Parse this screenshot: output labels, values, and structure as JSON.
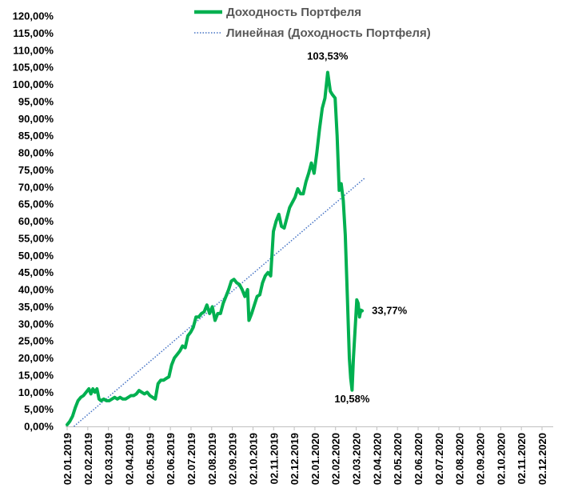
{
  "chart_data": {
    "type": "line",
    "title": "",
    "xlabel": "",
    "ylabel": "",
    "ylim": [
      0,
      120
    ],
    "y_tick_labels": [
      "0,00%",
      "5,00%",
      "10,00%",
      "15,00%",
      "20,00%",
      "25,00%",
      "30,00%",
      "35,00%",
      "40,00%",
      "45,00%",
      "50,00%",
      "55,00%",
      "60,00%",
      "65,00%",
      "70,00%",
      "75,00%",
      "80,00%",
      "85,00%",
      "90,00%",
      "95,00%",
      "100,00%",
      "105,00%",
      "110,00%",
      "115,00%",
      "120,00%"
    ],
    "x_tick_labels": [
      "02.01.2019",
      "02.02.2019",
      "02.03.2019",
      "02.04.2019",
      "02.05.2019",
      "02.06.2019",
      "02.07.2019",
      "02.08.2019",
      "02.09.2019",
      "02.10.2019",
      "02.11.2019",
      "02.12.2019",
      "02.01.2020",
      "02.02.2020",
      "02.03.2020",
      "02.04.2020",
      "02.05.2020",
      "02.06.2020",
      "02.07.2020",
      "02.08.2020",
      "02.09.2020",
      "02.10.2020",
      "02.11.2020",
      "02.12.2020"
    ],
    "grid": false,
    "legend_position": "top",
    "series": [
      {
        "name": "Доходность Портфеля",
        "color": "#00b050",
        "style": "solid",
        "points": [
          [
            "2019-01-02",
            0.5
          ],
          [
            "2019-01-06",
            1.5
          ],
          [
            "2019-01-10",
            3
          ],
          [
            "2019-01-14",
            5.5
          ],
          [
            "2019-01-18",
            7.5
          ],
          [
            "2019-01-22",
            8.5
          ],
          [
            "2019-01-26",
            9
          ],
          [
            "2019-01-30",
            10
          ],
          [
            "2019-02-03",
            11
          ],
          [
            "2019-02-06",
            9.5
          ],
          [
            "2019-02-09",
            11
          ],
          [
            "2019-02-12",
            10
          ],
          [
            "2019-02-15",
            11
          ],
          [
            "2019-02-18",
            8
          ],
          [
            "2019-02-21",
            7.5
          ],
          [
            "2019-02-25",
            8
          ],
          [
            "2019-03-01",
            7.5
          ],
          [
            "2019-03-05",
            7.5
          ],
          [
            "2019-03-09",
            8
          ],
          [
            "2019-03-13",
            8.5
          ],
          [
            "2019-03-17",
            8
          ],
          [
            "2019-03-21",
            8.5
          ],
          [
            "2019-03-25",
            8
          ],
          [
            "2019-03-29",
            8
          ],
          [
            "2019-04-02",
            8.5
          ],
          [
            "2019-04-06",
            9
          ],
          [
            "2019-04-10",
            9
          ],
          [
            "2019-04-14",
            9.5
          ],
          [
            "2019-04-18",
            10.5
          ],
          [
            "2019-04-22",
            10
          ],
          [
            "2019-04-26",
            9.5
          ],
          [
            "2019-04-30",
            10
          ],
          [
            "2019-05-04",
            9
          ],
          [
            "2019-05-08",
            8.5
          ],
          [
            "2019-05-12",
            8
          ],
          [
            "2019-05-16",
            12.5
          ],
          [
            "2019-05-20",
            13.5
          ],
          [
            "2019-05-24",
            13.5
          ],
          [
            "2019-05-28",
            14
          ],
          [
            "2019-06-01",
            14.5
          ],
          [
            "2019-06-05",
            18
          ],
          [
            "2019-06-09",
            20
          ],
          [
            "2019-06-13",
            21
          ],
          [
            "2019-06-17",
            22
          ],
          [
            "2019-06-21",
            23.5
          ],
          [
            "2019-06-25",
            23
          ],
          [
            "2019-06-29",
            26.5
          ],
          [
            "2019-07-03",
            27.5
          ],
          [
            "2019-07-07",
            29
          ],
          [
            "2019-07-11",
            32
          ],
          [
            "2019-07-15",
            32
          ],
          [
            "2019-07-19",
            33
          ],
          [
            "2019-07-23",
            33.5
          ],
          [
            "2019-07-27",
            35.5
          ],
          [
            "2019-07-31",
            33
          ],
          [
            "2019-08-04",
            35
          ],
          [
            "2019-08-08",
            31
          ],
          [
            "2019-08-12",
            33
          ],
          [
            "2019-08-16",
            33
          ],
          [
            "2019-08-20",
            36
          ],
          [
            "2019-08-24",
            38
          ],
          [
            "2019-08-28",
            40
          ],
          [
            "2019-09-01",
            42.5
          ],
          [
            "2019-09-05",
            43
          ],
          [
            "2019-09-09",
            42
          ],
          [
            "2019-09-13",
            41.5
          ],
          [
            "2019-09-17",
            40
          ],
          [
            "2019-09-21",
            38
          ],
          [
            "2019-09-25",
            40
          ],
          [
            "2019-09-27",
            31
          ],
          [
            "2019-10-01",
            33
          ],
          [
            "2019-10-05",
            35.5
          ],
          [
            "2019-10-09",
            38
          ],
          [
            "2019-10-13",
            38.5
          ],
          [
            "2019-10-17",
            42
          ],
          [
            "2019-10-21",
            44
          ],
          [
            "2019-10-25",
            45
          ],
          [
            "2019-10-29",
            44
          ],
          [
            "2019-11-02",
            57
          ],
          [
            "2019-11-06",
            60
          ],
          [
            "2019-11-10",
            62
          ],
          [
            "2019-11-14",
            58.5
          ],
          [
            "2019-11-18",
            58
          ],
          [
            "2019-11-22",
            61
          ],
          [
            "2019-11-26",
            64
          ],
          [
            "2019-11-30",
            65.5
          ],
          [
            "2019-12-04",
            67
          ],
          [
            "2019-12-08",
            69.5
          ],
          [
            "2019-12-12",
            68
          ],
          [
            "2019-12-16",
            68
          ],
          [
            "2019-12-20",
            71.5
          ],
          [
            "2019-12-24",
            74
          ],
          [
            "2019-12-28",
            77
          ],
          [
            "2020-01-01",
            74
          ],
          [
            "2020-01-05",
            80
          ],
          [
            "2020-01-09",
            87
          ],
          [
            "2020-01-13",
            93
          ],
          [
            "2020-01-17",
            96
          ],
          [
            "2020-01-21",
            103.5
          ],
          [
            "2020-01-25",
            98
          ],
          [
            "2020-01-28",
            97
          ],
          [
            "2020-02-01",
            96
          ],
          [
            "2020-02-04",
            85
          ],
          [
            "2020-02-07",
            69
          ],
          [
            "2020-02-10",
            71
          ],
          [
            "2020-02-13",
            66
          ],
          [
            "2020-02-16",
            56
          ],
          [
            "2020-02-19",
            38
          ],
          [
            "2020-02-22",
            20
          ],
          [
            "2020-02-24",
            14
          ],
          [
            "2020-02-26",
            10.6
          ],
          [
            "2020-02-28",
            20
          ],
          [
            "2020-03-02",
            30
          ],
          [
            "2020-03-04",
            37
          ],
          [
            "2020-03-06",
            36
          ],
          [
            "2020-03-08",
            32
          ],
          [
            "2020-03-10",
            34
          ],
          [
            "2020-03-12",
            33.8
          ]
        ]
      },
      {
        "name": "Линейная (Доходность Портфеля)",
        "color": "#4472c4",
        "style": "dotted",
        "points": [
          [
            "2019-01-12",
            0
          ],
          [
            "2020-03-15",
            72.5
          ]
        ]
      }
    ],
    "annotations": [
      {
        "text": "103,53%",
        "x": "2020-01-21",
        "y": 103.53,
        "placement": "above"
      },
      {
        "text": "33,77%",
        "x": "2020-03-12",
        "y": 33.77,
        "placement": "right"
      },
      {
        "text": "10,58%",
        "x": "2020-02-26",
        "y": 10.58,
        "placement": "below"
      }
    ]
  }
}
